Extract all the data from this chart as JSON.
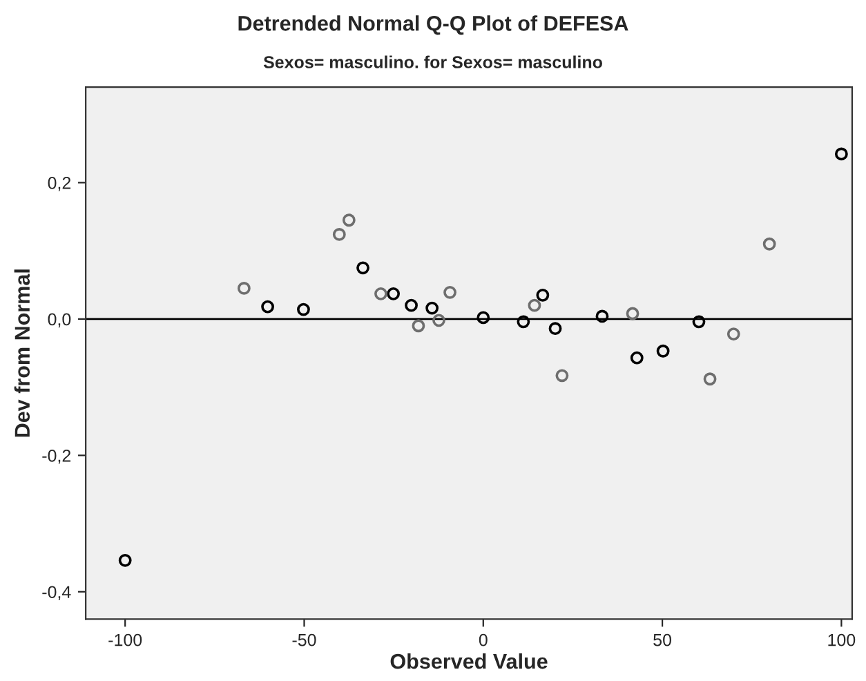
{
  "chart_data": {
    "type": "scatter",
    "title": "Detrended Normal Q-Q Plot of DEFESA",
    "subtitle": "Sexos= masculino. for Sexos= masculino",
    "xlabel": "Observed Value",
    "ylabel": "Dev from Normal",
    "xlim": [
      -111,
      103
    ],
    "ylim": [
      -0.44,
      0.34
    ],
    "xticks": [
      -100,
      -50,
      0,
      50,
      100
    ],
    "yticks": [
      {
        "value": -0.4,
        "label": "-0,4"
      },
      {
        "value": -0.2,
        "label": "-0,2"
      },
      {
        "value": 0,
        "label": "0,0"
      },
      {
        "value": 0.2,
        "label": "0,2"
      }
    ],
    "series": [
      {
        "color": "#000000",
        "x": [
          -100,
          -60.2,
          -50.2,
          -33.6,
          -25.1,
          -20.1,
          -14.3,
          0,
          11.2,
          16.6,
          20.1,
          33.2,
          42.9,
          50.2,
          60.2,
          100
        ],
        "values": [
          -0.354,
          0.018,
          0.014,
          0.075,
          0.037,
          0.02,
          0.016,
          0.002,
          -0.004,
          0.035,
          -0.014,
          0.004,
          -0.057,
          -0.047,
          -0.004,
          0.242
        ]
      },
      {
        "color": "#6e6e6e",
        "x": [
          -66.8,
          -40.2,
          -37.5,
          -28.6,
          -18.1,
          -12.4,
          -9.3,
          14.3,
          22.0,
          41.7,
          63.3,
          69.9,
          79.9
        ],
        "values": [
          0.045,
          0.124,
          0.145,
          0.037,
          -0.01,
          -0.002,
          0.039,
          0.02,
          -0.083,
          0.008,
          -0.088,
          -0.022,
          0.11
        ]
      }
    ],
    "ref_lines": [
      {
        "axis": "y",
        "value": 0,
        "color": "#000000"
      }
    ],
    "marker": "circle",
    "grid": false,
    "legend": false
  }
}
